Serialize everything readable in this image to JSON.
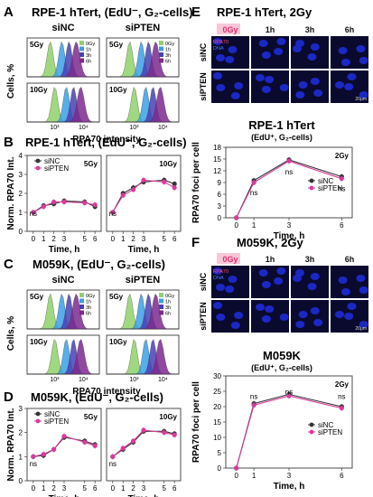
{
  "colors": {
    "c0": "#8fd16a",
    "c1": "#3aa0e6",
    "c3": "#4a3fb5",
    "c6": "#7b2a8e",
    "siNC": "#333333",
    "siPTEN": "#d63d9a",
    "zero_red": "#e0306a",
    "micro_bg": "#0a0a2e",
    "nucleus": "#1e2bd6"
  },
  "panel_labels": {
    "A": "A",
    "B": "B",
    "C": "C",
    "D": "D",
    "E": "E",
    "F": "F"
  },
  "titles": {
    "A": "RPE-1 hTert, (EdU⁻, G₂-cells)",
    "B": "RPE-1 hTert, (EdU⁻, G₂-cells)",
    "C": "M059K, (EdU⁻, G₂-cells)",
    "D": "M059K, (EdU⁻, G₂-cells)",
    "E": "RPE-1 hTert, 2Gy",
    "F": "M059K, 2Gy",
    "E_chart": "RPE-1 hTert",
    "E_chart_sub": "(EdU⁺, G₂-cells)",
    "F_chart": "M059K",
    "F_chart_sub": "(EdU⁺, G₂-cells)"
  },
  "hist": {
    "cols": [
      "siNC",
      "siPTEN"
    ],
    "rows": [
      "5Gy",
      "10Gy"
    ],
    "legend": [
      "0Gy",
      "1h",
      "3h",
      "6h"
    ],
    "ylabel": "Cells, %",
    "xlabel": "RPA70 intensity",
    "xticks": [
      "10³",
      "10⁴"
    ]
  },
  "micro": {
    "cols": [
      "0Gy",
      "1h",
      "3h",
      "6h"
    ],
    "rows": [
      "siNC",
      "siPTEN"
    ],
    "stain1": "RPA70",
    "stain2": "DNA",
    "scale": "20μm"
  },
  "chart_data": [
    {
      "id": "B1",
      "type": "line",
      "title": "5Gy",
      "xlabel": "Time, h",
      "ylabel": "Norm. RPA70 Int.",
      "x": [
        0,
        1,
        2,
        3,
        5,
        6
      ],
      "ylim": [
        0,
        4
      ],
      "yticks": [
        0,
        1,
        2,
        3,
        4
      ],
      "series": [
        {
          "name": "siNC",
          "values": [
            1.0,
            1.35,
            1.45,
            1.6,
            1.55,
            1.3
          ]
        },
        {
          "name": "siPTEN",
          "values": [
            1.0,
            1.3,
            1.55,
            1.55,
            1.5,
            1.4
          ]
        }
      ],
      "annotations": [
        "ns"
      ]
    },
    {
      "id": "B2",
      "type": "line",
      "title": "10Gy",
      "xlabel": "Time, h",
      "x": [
        0,
        1,
        2,
        3,
        5,
        6
      ],
      "ylim": [
        0,
        4
      ],
      "series": [
        {
          "name": "siNC",
          "values": [
            1.0,
            2.0,
            2.3,
            2.6,
            2.7,
            2.5
          ]
        },
        {
          "name": "siPTEN",
          "values": [
            1.0,
            1.9,
            2.2,
            2.7,
            2.6,
            2.3
          ]
        }
      ],
      "annotations": [
        "ns"
      ]
    },
    {
      "id": "D1",
      "type": "line",
      "title": "5Gy",
      "xlabel": "Time, h",
      "ylabel": "Norm. RPA70 Int.",
      "x": [
        0,
        1,
        2,
        3,
        5,
        6
      ],
      "ylim": [
        0,
        3
      ],
      "yticks": [
        0,
        1,
        2,
        3
      ],
      "series": [
        {
          "name": "siNC",
          "values": [
            1.0,
            1.05,
            1.3,
            1.8,
            1.65,
            1.5
          ]
        },
        {
          "name": "siPTEN",
          "values": [
            1.0,
            1.1,
            1.3,
            1.85,
            1.6,
            1.45
          ]
        }
      ],
      "annotations": [
        "ns"
      ]
    },
    {
      "id": "D2",
      "type": "line",
      "title": "10Gy",
      "xlabel": "Time, h",
      "x": [
        0,
        1,
        2,
        3,
        5,
        6
      ],
      "ylim": [
        0,
        3
      ],
      "series": [
        {
          "name": "siNC",
          "values": [
            1.0,
            1.3,
            1.6,
            2.05,
            2.05,
            1.95
          ]
        },
        {
          "name": "siPTEN",
          "values": [
            1.0,
            1.35,
            1.65,
            2.1,
            2.0,
            1.9
          ]
        }
      ],
      "annotations": [
        "ns"
      ]
    },
    {
      "id": "E",
      "type": "line",
      "title": "2Gy",
      "xlabel": "Time, h",
      "ylabel": "RPA70 foci per cell",
      "x": [
        0,
        1,
        3,
        6
      ],
      "ylim": [
        0,
        18
      ],
      "yticks": [
        0,
        3,
        6,
        9,
        12,
        15,
        18
      ],
      "series": [
        {
          "name": "siNC",
          "values": [
            0,
            9.5,
            14.8,
            10.5
          ]
        },
        {
          "name": "siPTEN",
          "values": [
            0,
            9.0,
            14.5,
            10.0
          ]
        }
      ],
      "annotations": [
        "ns",
        "ns",
        "ns"
      ]
    },
    {
      "id": "F",
      "type": "line",
      "title": "2Gy",
      "xlabel": "Time, h",
      "ylabel": "RPA70 foci per cell",
      "x": [
        0,
        1,
        3,
        6
      ],
      "ylim": [
        0,
        30
      ],
      "yticks": [
        0,
        5,
        10,
        15,
        20,
        25,
        30
      ],
      "series": [
        {
          "name": "siNC",
          "values": [
            0,
            21,
            24,
            20
          ]
        },
        {
          "name": "siPTEN",
          "values": [
            0,
            20.5,
            23.5,
            19.5
          ]
        }
      ],
      "annotations": [
        "ns",
        "ns",
        "ns"
      ]
    }
  ]
}
